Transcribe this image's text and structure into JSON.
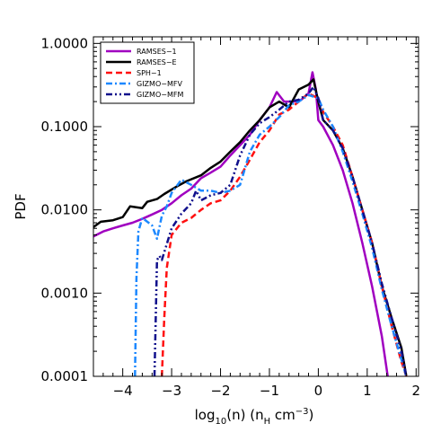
{
  "chart_data": {
    "type": "line",
    "xlabel": "log10(n) (nH cm−3)",
    "ylabel": "PDF",
    "xlim": [
      -4.6,
      2.05
    ],
    "ylim": [
      0.0001,
      1.2
    ],
    "yscale": "log",
    "grid": false,
    "legend_position": "top-left",
    "x_ticks": [
      -4,
      -3,
      -2,
      -1,
      0,
      1,
      2
    ],
    "x_tick_labels": [
      "−4",
      "−3",
      "−2",
      "−1",
      "0",
      "1",
      "2"
    ],
    "y_ticks": [
      0.0001,
      0.001,
      0.01,
      0.1,
      1
    ],
    "y_tick_labels": [
      "0.0001",
      "0.0010",
      "0.0100",
      "0.1000",
      "1.0000"
    ],
    "series": [
      {
        "name": "RAMSES−1",
        "color": "#a000c0",
        "dash": "solid",
        "width": 2.5,
        "x": [
          -4.6,
          -4.4,
          -4.2,
          -4.0,
          -3.8,
          -3.6,
          -3.4,
          -3.2,
          -3.0,
          -2.8,
          -2.6,
          -2.4,
          -2.2,
          -2.0,
          -1.8,
          -1.6,
          -1.4,
          -1.2,
          -1.0,
          -0.85,
          -0.7,
          -0.5,
          -0.35,
          -0.2,
          -0.12,
          -0.05,
          0.0,
          0.1,
          0.3,
          0.5,
          0.7,
          0.9,
          1.1,
          1.3,
          1.42
        ],
        "y": [
          0.0048,
          0.0055,
          0.006,
          0.0065,
          0.007,
          0.0078,
          0.0088,
          0.01,
          0.012,
          0.015,
          0.018,
          0.024,
          0.028,
          0.033,
          0.045,
          0.06,
          0.08,
          0.12,
          0.17,
          0.26,
          0.2,
          0.2,
          0.21,
          0.25,
          0.45,
          0.28,
          0.12,
          0.1,
          0.06,
          0.03,
          0.012,
          0.004,
          0.0012,
          0.0003,
          0.0001
        ]
      },
      {
        "name": "RAMSES−E",
        "color": "#000000",
        "dash": "solid",
        "width": 2.5,
        "x": [
          -4.6,
          -4.45,
          -4.2,
          -4.0,
          -3.85,
          -3.6,
          -3.5,
          -3.3,
          -3.15,
          -2.9,
          -2.7,
          -2.4,
          -2.2,
          -2.0,
          -1.8,
          -1.6,
          -1.4,
          -1.2,
          -1.0,
          -0.8,
          -0.6,
          -0.4,
          -0.2,
          -0.1,
          0.0,
          0.1,
          0.3,
          0.5,
          0.7,
          0.9,
          1.1,
          1.3,
          1.5,
          1.7,
          1.8
        ],
        "y": [
          0.0062,
          0.0072,
          0.0075,
          0.0082,
          0.011,
          0.0105,
          0.0125,
          0.0135,
          0.0155,
          0.019,
          0.022,
          0.026,
          0.032,
          0.038,
          0.05,
          0.065,
          0.09,
          0.12,
          0.17,
          0.2,
          0.17,
          0.28,
          0.32,
          0.37,
          0.2,
          0.12,
          0.09,
          0.055,
          0.025,
          0.01,
          0.004,
          0.0012,
          0.0005,
          0.00022,
          0.0001
        ]
      },
      {
        "name": "SPH−1",
        "color": "#ff1010",
        "dash": "dashed",
        "width": 2.5,
        "x": [
          -3.2,
          -3.15,
          -3.1,
          -3.0,
          -2.8,
          -2.6,
          -2.4,
          -2.2,
          -2.0,
          -1.8,
          -1.6,
          -1.4,
          -1.2,
          -1.0,
          -0.8,
          -0.6,
          -0.4,
          -0.2,
          0.0,
          0.1,
          0.3,
          0.5,
          0.7,
          0.9,
          1.1,
          1.3,
          1.5,
          1.7,
          1.8
        ],
        "y": [
          0.0001,
          0.0005,
          0.002,
          0.005,
          0.007,
          0.008,
          0.01,
          0.012,
          0.013,
          0.017,
          0.025,
          0.04,
          0.065,
          0.09,
          0.14,
          0.16,
          0.2,
          0.25,
          0.22,
          0.15,
          0.1,
          0.06,
          0.025,
          0.01,
          0.004,
          0.0012,
          0.0004,
          0.00015,
          0.0001
        ]
      },
      {
        "name": "GIZMO−MFV",
        "color": "#1c88ff",
        "dash": "dashdot",
        "width": 2.5,
        "x": [
          -3.75,
          -3.72,
          -3.68,
          -3.6,
          -3.4,
          -3.3,
          -3.2,
          -3.1,
          -3.0,
          -2.8,
          -2.6,
          -2.4,
          -2.2,
          -2.0,
          -1.8,
          -1.6,
          -1.4,
          -1.2,
          -1.0,
          -0.8,
          -0.6,
          -0.4,
          -0.2,
          0.0,
          0.1,
          0.3,
          0.5,
          0.7,
          0.9,
          1.1,
          1.3,
          1.5,
          1.7,
          1.8
        ],
        "y": [
          0.0001,
          0.0015,
          0.0055,
          0.008,
          0.0065,
          0.0045,
          0.0085,
          0.011,
          0.016,
          0.023,
          0.02,
          0.017,
          0.017,
          0.016,
          0.017,
          0.02,
          0.05,
          0.08,
          0.1,
          0.13,
          0.18,
          0.2,
          0.24,
          0.22,
          0.16,
          0.1,
          0.05,
          0.022,
          0.009,
          0.0035,
          0.0011,
          0.0004,
          0.00016,
          0.0001
        ]
      },
      {
        "name": "GIZMO−MFM",
        "color": "#10108c",
        "dash": "dashdotdot",
        "width": 2.5,
        "x": [
          -3.35,
          -3.3,
          -3.25,
          -3.2,
          -3.0,
          -2.8,
          -2.6,
          -2.5,
          -2.4,
          -2.2,
          -2.0,
          -1.8,
          -1.6,
          -1.4,
          -1.2,
          -1.0,
          -0.8,
          -0.6,
          -0.4,
          -0.2,
          -0.1,
          0.0,
          0.1,
          0.3,
          0.5,
          0.7,
          0.9,
          1.1,
          1.3,
          1.5,
          1.7,
          1.8
        ],
        "y": [
          0.0001,
          0.0025,
          0.0028,
          0.0025,
          0.006,
          0.009,
          0.012,
          0.017,
          0.013,
          0.015,
          0.016,
          0.02,
          0.045,
          0.08,
          0.11,
          0.13,
          0.16,
          0.2,
          0.21,
          0.25,
          0.3,
          0.22,
          0.12,
          0.09,
          0.055,
          0.025,
          0.01,
          0.004,
          0.0013,
          0.0005,
          0.0002,
          0.0001
        ]
      }
    ]
  }
}
